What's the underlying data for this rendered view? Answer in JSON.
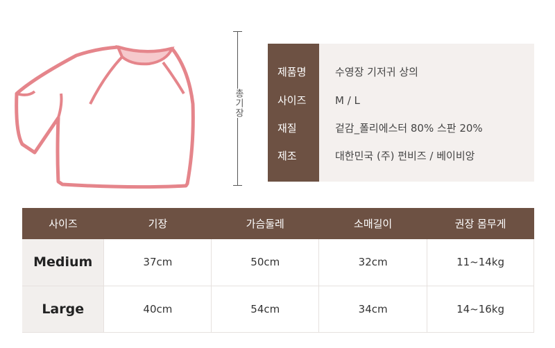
{
  "diagram": {
    "length_label": "총기장",
    "stroke_color": "#e5858b",
    "collar_color": "#f6c9cc"
  },
  "info": [
    {
      "key": "제품명",
      "value": "수영장 기저귀 상의"
    },
    {
      "key": "사이즈",
      "value": "M / L"
    },
    {
      "key": "재질",
      "value": "겉감_폴리에스터 80% 스판 20%"
    },
    {
      "key": "제조",
      "value": "대한민국 (주) 펀비즈 / 베이비앙"
    }
  ],
  "table": {
    "headers": [
      "사이즈",
      "기장",
      "가슴둘레",
      "소매길이",
      "권장 몸무게"
    ],
    "rows": [
      [
        "Medium",
        "37cm",
        "50cm",
        "32cm",
        "11~14kg"
      ],
      [
        "Large",
        "40cm",
        "54cm",
        "34cm",
        "14~16kg"
      ]
    ]
  },
  "colors": {
    "brown": "#6d5143",
    "panel": "#f4f0ee"
  }
}
